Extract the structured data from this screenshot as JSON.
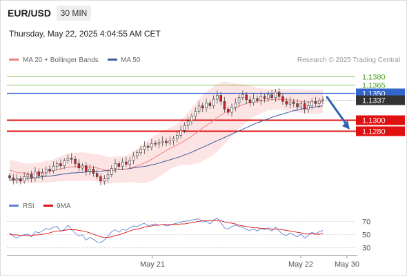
{
  "header": {
    "symbol": "EUR/USD",
    "timeframe": "30 MIN",
    "datetime": "Thursday, May 22, 2025 4:04:55 AM CET"
  },
  "legend": {
    "ma20": "MA 20 + Bollinger Bands",
    "ma50": "MA 50",
    "research": "Research © 2025 Trading Central",
    "rsi": "RSI",
    "ma9": "9MA"
  },
  "colors": {
    "ma20": "#f08080",
    "ma50": "#3d5a99",
    "bollinger_fill": "#fde4e4",
    "up_candle": "#2e7d32",
    "down_candle": "#c62828",
    "support": "#e01010",
    "resistance": "#55b025",
    "current_line": "#3366cc",
    "arrow": "#2a62b0",
    "rsi_line": "#5b82d6",
    "rsi_ma": "#e01010"
  },
  "chart_data": [
    {
      "type": "candlestick",
      "title": "EUR/USD",
      "timeframe": "30 MIN",
      "ylim": [
        1.116,
        1.14
      ],
      "x_ticks": [
        "May 21",
        "May 22",
        "May 30"
      ],
      "levels": [
        {
          "value": 1.138,
          "label": "1.1380",
          "kind": "resistance"
        },
        {
          "value": 1.1365,
          "label": "1.1365",
          "kind": "resistance"
        },
        {
          "value": 1.135,
          "label": "1.1350",
          "kind": "current-line"
        },
        {
          "value": 1.1337,
          "label": "1.1337",
          "kind": "last-price"
        },
        {
          "value": 1.13,
          "label": "1.1300",
          "kind": "support"
        },
        {
          "value": 1.128,
          "label": "1.1280",
          "kind": "support"
        }
      ],
      "projection": {
        "from": 1.1342,
        "to": 1.128
      },
      "close": [
        1.1194,
        1.119,
        1.1192,
        1.1188,
        1.1196,
        1.12,
        1.1193,
        1.1205,
        1.1198,
        1.1203,
        1.121,
        1.1207,
        1.1215,
        1.122,
        1.1216,
        1.1225,
        1.123,
        1.1228,
        1.122,
        1.1212,
        1.1216,
        1.1206,
        1.121,
        1.1202,
        1.1196,
        1.1188,
        1.1192,
        1.12,
        1.1211,
        1.122,
        1.1215,
        1.1223,
        1.1219,
        1.1226,
        1.1234,
        1.124,
        1.1246,
        1.1252,
        1.125,
        1.1257,
        1.1256,
        1.1259,
        1.1261,
        1.1258,
        1.1262,
        1.1266,
        1.1272,
        1.1281,
        1.129,
        1.1298,
        1.1307,
        1.1316,
        1.1326,
        1.1322,
        1.1331,
        1.1326,
        1.1338,
        1.1345,
        1.1334,
        1.132,
        1.1314,
        1.1323,
        1.1331,
        1.1341,
        1.1346,
        1.1337,
        1.1332,
        1.1339,
        1.1336,
        1.1343,
        1.1339,
        1.1346,
        1.1341,
        1.1351,
        1.1343,
        1.1334,
        1.1329,
        1.1333,
        1.133,
        1.1324,
        1.133,
        1.132,
        1.1326,
        1.1334,
        1.133,
        1.1336,
        1.1337
      ],
      "ma20": [
        1.1208,
        1.1206,
        1.1204,
        1.1203,
        1.1203,
        1.1202,
        1.1202,
        1.1203,
        1.1203,
        1.1204,
        1.1205,
        1.1206,
        1.1207,
        1.1209,
        1.121,
        1.1212,
        1.1213,
        1.1214,
        1.1214,
        1.1214,
        1.1215,
        1.1214,
        1.1214,
        1.1213,
        1.1212,
        1.121,
        1.1208,
        1.1208,
        1.1208,
        1.1209,
        1.1209,
        1.121,
        1.121,
        1.1212,
        1.1214,
        1.1216,
        1.1218,
        1.1221,
        1.1224,
        1.1228,
        1.1232,
        1.1236,
        1.124,
        1.1244,
        1.1248,
        1.1251,
        1.1254,
        1.1258,
        1.1262,
        1.1266,
        1.127,
        1.1275,
        1.128,
        1.1285,
        1.129,
        1.1294,
        1.1299,
        1.1304,
        1.1309,
        1.1313,
        1.1316,
        1.1319,
        1.1322,
        1.1325,
        1.1328,
        1.133,
        1.1332,
        1.1333,
        1.1334,
        1.1335,
        1.1336,
        1.1337,
        1.1337,
        1.1338,
        1.1338,
        1.1338,
        1.1337,
        1.1337,
        1.1336,
        1.1335,
        1.1334,
        1.1333,
        1.1333,
        1.1333,
        1.1333,
        1.1333,
        1.1334
      ],
      "ma50": [
        1.119,
        1.119,
        1.1191,
        1.1192,
        1.1192,
        1.1193,
        1.1194,
        1.1195,
        1.1195,
        1.1196,
        1.1197,
        1.1197,
        1.1198,
        1.1199,
        1.12,
        1.1201,
        1.1202,
        1.1203,
        1.1203,
        1.1204,
        1.1204,
        1.1205,
        1.1205,
        1.1206,
        1.1206,
        1.1206,
        1.1207,
        1.1207,
        1.1208,
        1.1208,
        1.1209,
        1.1209,
        1.121,
        1.1211,
        1.1212,
        1.1213,
        1.1214,
        1.1215,
        1.1216,
        1.1218,
        1.1219,
        1.1221,
        1.1223,
        1.1225,
        1.1227,
        1.1229,
        1.1231,
        1.1233,
        1.1236,
        1.1238,
        1.1241,
        1.1244,
        1.1247,
        1.125,
        1.1253,
        1.1256,
        1.1259,
        1.1262,
        1.1265,
        1.1268,
        1.1271,
        1.1274,
        1.1277,
        1.128,
        1.1283,
        1.1286,
        1.1289,
        1.1292,
        1.1295,
        1.1297,
        1.13,
        1.1302,
        1.1305,
        1.1307,
        1.1309,
        1.1311,
        1.1313,
        1.1315,
        1.1317,
        1.1318,
        1.132,
        1.1321,
        1.1322,
        1.1323,
        1.1324,
        1.1325,
        1.1326
      ],
      "bb_upper": [
        1.1228,
        1.1226,
        1.1224,
        1.1222,
        1.1221,
        1.122,
        1.122,
        1.1221,
        1.1222,
        1.1223,
        1.1225,
        1.1226,
        1.1228,
        1.1231,
        1.1233,
        1.1236,
        1.1238,
        1.124,
        1.124,
        1.124,
        1.1241,
        1.124,
        1.1239,
        1.1238,
        1.1237,
        1.1236,
        1.1234,
        1.1233,
        1.1232,
        1.1233,
        1.1233,
        1.1234,
        1.1235,
        1.1238,
        1.1242,
        1.1247,
        1.1252,
        1.1258,
        1.1262,
        1.1268,
        1.1272,
        1.1276,
        1.128,
        1.1283,
        1.1286,
        1.1289,
        1.1293,
        1.1299,
        1.1306,
        1.1314,
        1.1322,
        1.133,
        1.1339,
        1.1345,
        1.1352,
        1.1356,
        1.1361,
        1.1366,
        1.1369,
        1.137,
        1.1369,
        1.1368,
        1.1367,
        1.1366,
        1.1366,
        1.1364,
        1.1363,
        1.1361,
        1.1359,
        1.1358,
        1.1357,
        1.1356,
        1.1356,
        1.1357,
        1.1357,
        1.1357,
        1.1357,
        1.1357,
        1.1356,
        1.1356,
        1.1355,
        1.1355,
        1.1355,
        1.1355,
        1.1355,
        1.1355,
        1.1355
      ],
      "bb_lower": [
        1.1188,
        1.1186,
        1.1184,
        1.1184,
        1.1185,
        1.1184,
        1.1184,
        1.1185,
        1.1184,
        1.1185,
        1.1185,
        1.1186,
        1.1186,
        1.1187,
        1.1187,
        1.1188,
        1.1188,
        1.1188,
        1.1188,
        1.1188,
        1.1189,
        1.1188,
        1.1189,
        1.1188,
        1.1187,
        1.1184,
        1.1182,
        1.1183,
        1.1184,
        1.1185,
        1.1185,
        1.1186,
        1.1185,
        1.1186,
        1.1186,
        1.1185,
        1.1184,
        1.1184,
        1.1186,
        1.1188,
        1.1192,
        1.1196,
        1.12,
        1.1205,
        1.121,
        1.1213,
        1.1215,
        1.1217,
        1.1218,
        1.1218,
        1.1218,
        1.122,
        1.1221,
        1.1225,
        1.1228,
        1.1232,
        1.1237,
        1.1242,
        1.1249,
        1.1256,
        1.1263,
        1.127,
        1.1277,
        1.1284,
        1.129,
        1.1296,
        1.1301,
        1.1305,
        1.1309,
        1.1312,
        1.1315,
        1.1318,
        1.1318,
        1.1319,
        1.1319,
        1.1319,
        1.1317,
        1.1317,
        1.1316,
        1.1314,
        1.1313,
        1.1311,
        1.1311,
        1.1311,
        1.1311,
        1.1311,
        1.1313
      ]
    },
    {
      "type": "line",
      "title": "RSI",
      "y_ticks": [
        70,
        50,
        30
      ],
      "ylim": [
        20,
        80
      ],
      "series": [
        {
          "name": "RSI",
          "values": [
            52,
            47,
            44,
            48,
            49,
            50,
            46,
            54,
            52,
            55,
            59,
            57,
            61,
            62,
            55,
            57,
            64,
            58,
            52,
            47,
            49,
            41,
            45,
            42,
            38,
            37,
            41,
            47,
            54,
            57,
            53,
            58,
            56,
            60,
            63,
            62,
            65,
            67,
            63,
            65,
            66,
            64,
            65,
            63,
            64,
            66,
            67,
            69,
            70,
            71,
            72,
            73,
            74,
            69,
            70,
            66,
            72,
            75,
            68,
            60,
            58,
            62,
            64,
            62,
            61,
            57,
            56,
            58,
            55,
            59,
            57,
            60,
            55,
            61,
            55,
            50,
            48,
            52,
            49,
            46,
            50,
            44,
            48,
            53,
            50,
            54,
            56
          ]
        },
        {
          "name": "9MA",
          "values": [
            50,
            49,
            49,
            48,
            48,
            48,
            48,
            49,
            49,
            50,
            51,
            52,
            54,
            55,
            55,
            56,
            57,
            57,
            57,
            56,
            55,
            54,
            52,
            50,
            48,
            46,
            45,
            45,
            46,
            48,
            49,
            51,
            53,
            55,
            57,
            58,
            59,
            61,
            62,
            63,
            64,
            64,
            65,
            65,
            65,
            65,
            65,
            66,
            66,
            67,
            68,
            69,
            70,
            71,
            71,
            71,
            71,
            72,
            71,
            69,
            68,
            67,
            66,
            64,
            63,
            62,
            61,
            60,
            60,
            59,
            59,
            58,
            58,
            58,
            58,
            57,
            56,
            55,
            54,
            53,
            52,
            51,
            51,
            51,
            50,
            50,
            51
          ]
        }
      ]
    }
  ]
}
